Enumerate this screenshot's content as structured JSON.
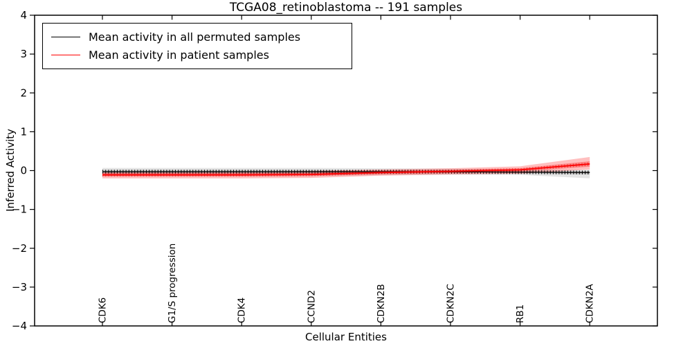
{
  "chart_data": {
    "type": "line",
    "title": "TCGA08_retinoblastoma -- 191 samples",
    "xlabel": "Cellular Entities",
    "ylabel": "Inferred Activity",
    "ylim": [
      -4,
      4
    ],
    "grid": false,
    "yticks": {
      "values": [
        4,
        3,
        2,
        1,
        0,
        -1,
        -2,
        -3,
        -4
      ],
      "labels": [
        "4",
        "3",
        "2",
        "1",
        "0",
        "−1",
        "−2",
        "−3",
        "−4"
      ]
    },
    "categories": [
      "CDK6",
      "G1/S progression",
      "CDK4",
      "CCND2",
      "CDKN2B",
      "CDKN2C",
      "RB1",
      "CDKN2A"
    ],
    "legend": {
      "position": "upper left",
      "entries": [
        {
          "label": "Mean activity in all permuted samples",
          "color": "#000000"
        },
        {
          "label": "Mean activity in patient samples",
          "color": "#ff0000"
        }
      ]
    },
    "series": [
      {
        "name": "Mean activity in all permuted samples",
        "color": "#000000",
        "marker": "+",
        "values": [
          -0.03,
          -0.03,
          -0.03,
          -0.03,
          -0.03,
          -0.03,
          -0.04,
          -0.05
        ],
        "band_inner_upper": [
          0.02,
          0.02,
          0.02,
          0.02,
          0.01,
          0.01,
          0.0,
          -0.01
        ],
        "band_inner_lower": [
          -0.08,
          -0.08,
          -0.08,
          -0.08,
          -0.07,
          -0.07,
          -0.08,
          -0.1
        ],
        "band_outer_upper": [
          0.07,
          0.07,
          0.07,
          0.07,
          0.06,
          0.05,
          0.03,
          0.02
        ],
        "band_outer_lower": [
          -0.13,
          -0.13,
          -0.13,
          -0.13,
          -0.12,
          -0.11,
          -0.11,
          -0.2
        ]
      },
      {
        "name": "Mean activity in patient samples",
        "color": "#ff0000",
        "marker": "+",
        "values": [
          -0.11,
          -0.11,
          -0.11,
          -0.1,
          -0.05,
          -0.02,
          0.02,
          0.17
        ],
        "band_inner_upper": [
          -0.07,
          -0.07,
          -0.07,
          -0.06,
          -0.01,
          0.02,
          0.06,
          0.24
        ],
        "band_inner_lower": [
          -0.15,
          -0.15,
          -0.15,
          -0.14,
          -0.09,
          -0.06,
          -0.02,
          0.1
        ],
        "band_outer_upper": [
          -0.02,
          -0.02,
          -0.02,
          -0.01,
          0.03,
          0.06,
          0.11,
          0.35
        ],
        "band_outer_lower": [
          -0.2,
          -0.2,
          -0.2,
          -0.19,
          -0.13,
          -0.1,
          -0.08,
          0.03
        ]
      }
    ]
  }
}
